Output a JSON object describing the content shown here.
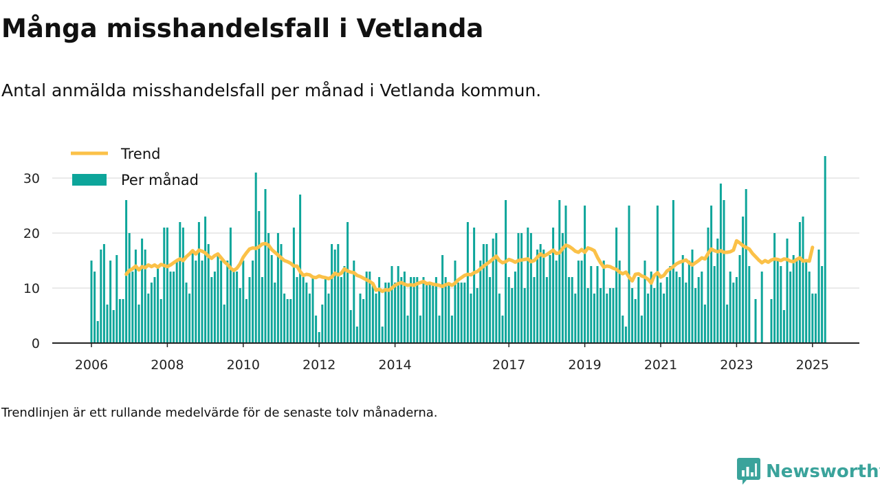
{
  "header": {
    "title": "Många misshandelsfall i Vetlanda",
    "subtitle": "Antal anmälda misshandelsfall per månad i Vetlanda kommun."
  },
  "footnote": "Trendlinjen är ett rullande medelvärde för de senaste tolv månaderna.",
  "brand": {
    "name": "Newsworthy",
    "icon": "newsworthy-logo-icon",
    "color": "#3aa39b"
  },
  "colors": {
    "bars": "#0da59a",
    "trend": "#fbc148",
    "grid": "#dddddd",
    "axis": "#222222"
  },
  "chart_data": {
    "type": "bar",
    "title": "",
    "xlabel": "",
    "ylabel": "",
    "ylim": [
      0,
      35
    ],
    "yticks": [
      0,
      10,
      20,
      30
    ],
    "x_tick_labels": [
      "2006",
      "2008",
      "2010",
      "2012",
      "2014",
      "2017",
      "2019",
      "2021",
      "2023",
      "2025"
    ],
    "x_tick_months": [
      0,
      24,
      48,
      72,
      96,
      132,
      156,
      180,
      204,
      228
    ],
    "grid": true,
    "legend": {
      "placement": "top-left",
      "entries": [
        "Trend",
        "Per månad"
      ]
    },
    "x_start": "2006-01",
    "gaps_note": "null = no bar shown",
    "series": [
      {
        "name": "Per månad",
        "type": "bar",
        "values": [
          15,
          13,
          4,
          17,
          18,
          7,
          15,
          6,
          16,
          8,
          8,
          26,
          20,
          13,
          17,
          7,
          19,
          17,
          9,
          11,
          12,
          14,
          8,
          21,
          21,
          13,
          13,
          15,
          22,
          21,
          11,
          9,
          17,
          15,
          22,
          15,
          23,
          18,
          12,
          13,
          16,
          15,
          7,
          15,
          21,
          13,
          13,
          10,
          15,
          8,
          12,
          15,
          31,
          24,
          12,
          28,
          20,
          16,
          11,
          20,
          18,
          9,
          8,
          8,
          21,
          12,
          27,
          12,
          11,
          9,
          12,
          5,
          2,
          7,
          12,
          9,
          18,
          17,
          18,
          12,
          14,
          22,
          6,
          15,
          3,
          9,
          8,
          13,
          13,
          11,
          9,
          12,
          3,
          11,
          11,
          14,
          11,
          14,
          12,
          13,
          5,
          12,
          12,
          12,
          5,
          12,
          11,
          11,
          11,
          12,
          5,
          16,
          12,
          11,
          5,
          15,
          11,
          11,
          11,
          22,
          9,
          21,
          10,
          15,
          18,
          18,
          12,
          19,
          20,
          9,
          5,
          26,
          12,
          10,
          13,
          20,
          20,
          10,
          21,
          20,
          12,
          17,
          18,
          17,
          12,
          16,
          21,
          15,
          26,
          20,
          25,
          12,
          12,
          9,
          15,
          15,
          25,
          10,
          14,
          9,
          14,
          10,
          15,
          9,
          10,
          10,
          21,
          15,
          5,
          3,
          25,
          10,
          8,
          12,
          5,
          15,
          9,
          13,
          10,
          25,
          11,
          9,
          12,
          14,
          26,
          13,
          12,
          16,
          11,
          15,
          17,
          10,
          12,
          13,
          7,
          21,
          25,
          14,
          19,
          29,
          26,
          7,
          13,
          11,
          12,
          16,
          23,
          28,
          14,
          null,
          8,
          null,
          13,
          null,
          null,
          8,
          20,
          15,
          14,
          6,
          19,
          13,
          16,
          15,
          22,
          23,
          15,
          13,
          9,
          9,
          17,
          14,
          34
        ]
      },
      {
        "name": "Trend",
        "type": "line",
        "start_month": 11,
        "values": [
          12.5,
          13.2,
          13.5,
          14.0,
          13.3,
          13.9,
          13.7,
          14.2,
          13.9,
          14.2,
          13.8,
          14.3,
          14.1,
          13.9,
          14.2,
          14.6,
          15.0,
          15.3,
          15.0,
          15.7,
          16.2,
          16.8,
          16.2,
          16.9,
          16.7,
          16.4,
          15.8,
          15.4,
          15.9,
          16.2,
          15.5,
          14.8,
          14.3,
          13.6,
          13.2,
          13.6,
          14.4,
          15.6,
          16.4,
          17.1,
          17.3,
          17.2,
          17.5,
          18.0,
          18.1,
          17.8,
          17.0,
          16.5,
          16.0,
          15.5,
          15.0,
          14.8,
          14.5,
          14.0,
          14.0,
          13.0,
          12.3,
          12.5,
          12.4,
          12.0,
          11.9,
          12.2,
          12.0,
          11.9,
          11.7,
          12.0,
          12.7,
          12.4,
          12.7,
          13.5,
          13.1,
          12.9,
          12.8,
          12.3,
          12.1,
          11.8,
          11.5,
          11.2,
          10.8,
          9.6,
          9.8,
          9.4,
          9.7,
          9.6,
          10.0,
          10.5,
          10.8,
          11.0,
          10.7,
          10.5,
          10.6,
          10.5,
          10.8,
          11.0,
          11.2,
          10.8,
          10.9,
          10.7,
          10.6,
          10.5,
          10.3,
          10.6,
          10.8,
          10.5,
          10.9,
          11.5,
          11.9,
          12.3,
          12.5,
          12.4,
          12.8,
          13.0,
          13.5,
          14.0,
          14.4,
          14.8,
          15.3,
          15.8,
          15.0,
          14.6,
          14.8,
          15.2,
          15.0,
          14.7,
          15.0,
          15.1,
          15.2,
          15.3,
          14.8,
          15.0,
          15.6,
          16.2,
          15.8,
          16.1,
          16.5,
          16.9,
          16.3,
          16.4,
          17.2,
          17.8,
          17.6,
          17.2,
          16.7,
          16.5,
          17.0,
          16.5,
          17.3,
          17.1,
          16.8,
          15.6,
          14.6,
          13.8,
          14.0,
          13.9,
          13.6,
          13.4,
          12.9,
          12.6,
          12.9,
          12.0,
          11.3,
          12.5,
          12.6,
          12.2,
          12.0,
          11.6,
          10.9,
          12.3,
          12.8,
          12.0,
          12.3,
          13.1,
          13.5,
          13.9,
          14.4,
          14.7,
          14.9,
          15.1,
          14.6,
          14.2,
          14.6,
          15.0,
          15.5,
          15.3,
          16.3,
          17.1,
          16.8,
          16.6,
          16.8,
          16.5,
          16.5,
          16.6,
          16.9,
          18.6,
          18.2,
          17.7,
          17.4,
          17.1,
          16.3,
          15.7,
          15.1,
          14.6,
          15.0,
          14.7,
          15.1,
          15.3,
          15.2,
          15.0,
          15.3,
          15.2,
          14.9,
          14.8,
          15.2,
          15.5,
          14.9,
          15.0,
          14.9,
          17.4
        ]
      }
    ]
  }
}
